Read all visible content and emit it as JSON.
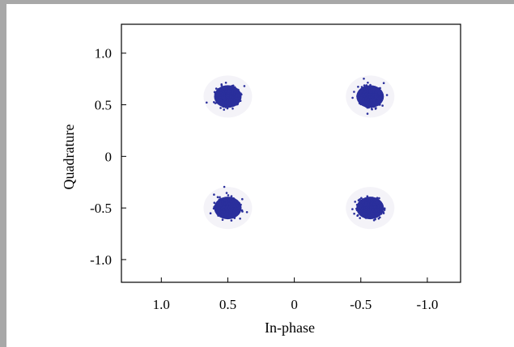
{
  "chart_data": {
    "type": "scatter",
    "title": "",
    "xlabel": "In-phase",
    "ylabel": "Quadrature",
    "x_reversed": true,
    "xlim": [
      1.3,
      -1.25
    ],
    "ylim": [
      -1.22,
      1.28
    ],
    "xticks": [
      1.0,
      0.5,
      0,
      -0.5,
      -1.0
    ],
    "xtick_labels": [
      "1.0",
      "0.5",
      "0",
      "-0.5",
      "-1.0"
    ],
    "yticks": [
      1.0,
      0.5,
      0,
      -0.5,
      -1.0
    ],
    "ytick_labels": [
      "1.0",
      "0.5",
      "0",
      "-0.5",
      "-1.0"
    ],
    "grid": false,
    "point_color": "#2a2f9c",
    "clusters": [
      {
        "x": 0.5,
        "y": 0.58
      },
      {
        "x": -0.57,
        "y": 0.58
      },
      {
        "x": 0.5,
        "y": -0.5
      },
      {
        "x": -0.57,
        "y": -0.5
      }
    ]
  }
}
